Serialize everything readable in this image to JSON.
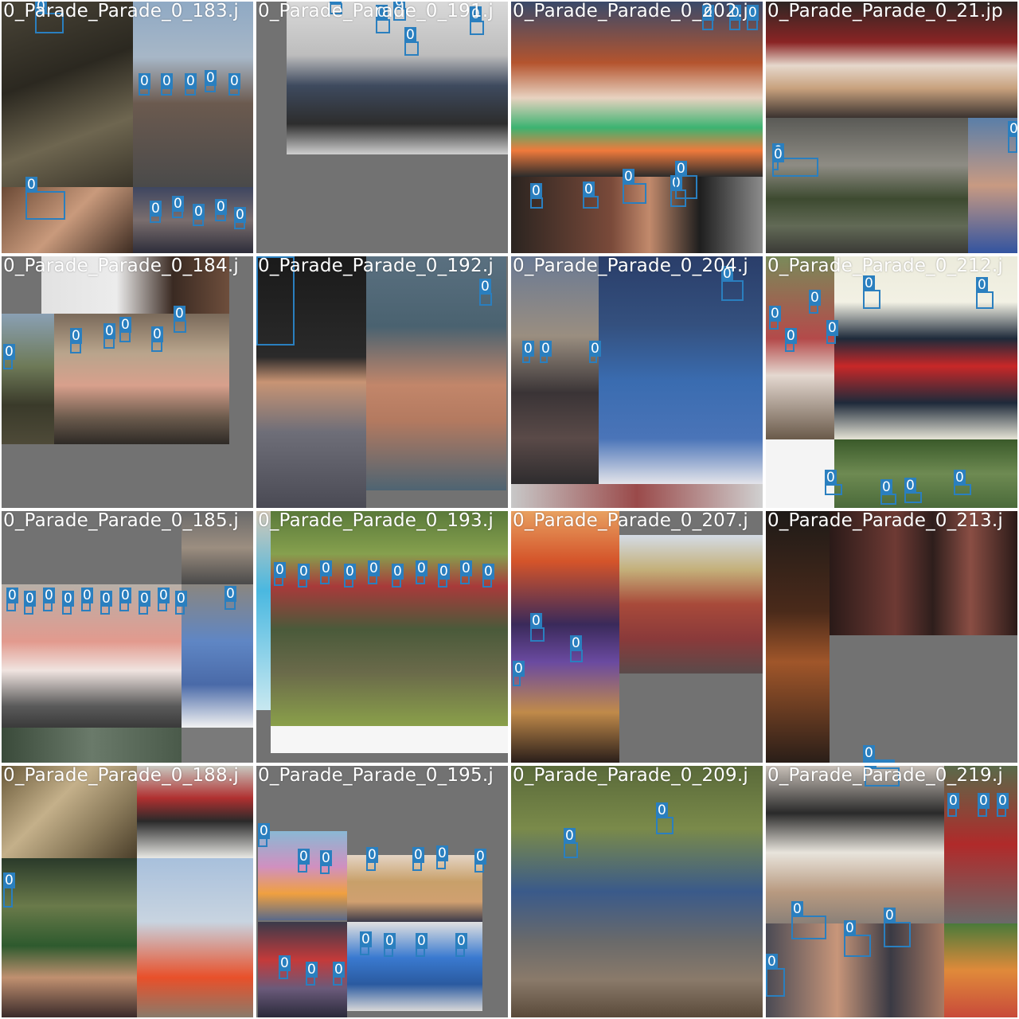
{
  "mosaic": {
    "box_color": "#2a7fbf",
    "pad_color": "#727272",
    "tiles": [
      {
        "title": "0_Parade_Parade_0_183.j",
        "label": "0"
      },
      {
        "title": "0_Parade_Parade_0_191.j",
        "label": "0"
      },
      {
        "title": "0_Parade_Parade_0_202.j",
        "label": "0"
      },
      {
        "title": "0_Parade_Parade_0_21.jp",
        "label": "0"
      },
      {
        "title": "0_Parade_Parade_0_184.j",
        "label": "0"
      },
      {
        "title": "0_Parade_Parade_0_192.j",
        "label": "0"
      },
      {
        "title": "0_Parade_Parade_0_204.j",
        "label": "0"
      },
      {
        "title": "0_Parade_Parade_0_212.j",
        "label": "0"
      },
      {
        "title": "0_Parade_Parade_0_185.j",
        "label": "0"
      },
      {
        "title": "0_Parade_Parade_0_193.j",
        "label": "0"
      },
      {
        "title": "0_Parade_Parade_0_207.j",
        "label": "0"
      },
      {
        "title": "0_Parade_Parade_0_213.j",
        "label": "0"
      },
      {
        "title": "0_Parade_Parade_0_188.j",
        "label": "0"
      },
      {
        "title": "0_Parade_Parade_0_195.j",
        "label": "0"
      },
      {
        "title": "0_Parade_Parade_0_209.j",
        "label": "0"
      },
      {
        "title": "0_Parade_Parade_0_219.j",
        "label": "0"
      }
    ]
  }
}
